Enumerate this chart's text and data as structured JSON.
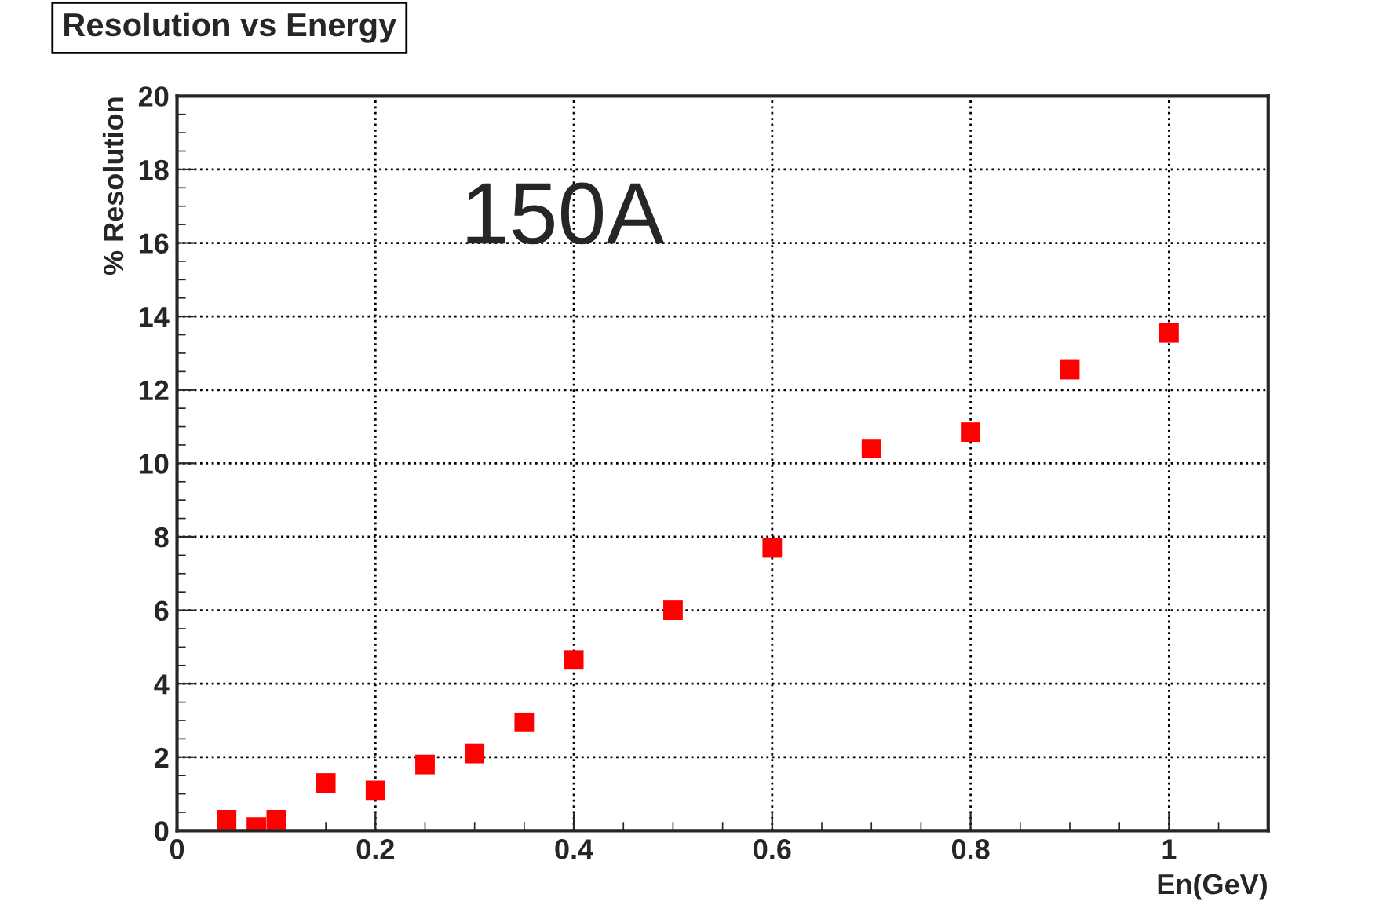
{
  "chart_data": {
    "type": "scatter",
    "title": "Resolution vs Energy",
    "xlabel": "En(GeV)",
    "ylabel": "% Resolution",
    "annotations": [
      "150A"
    ],
    "x": [
      0.05,
      0.08,
      0.1,
      0.15,
      0.2,
      0.25,
      0.3,
      0.35,
      0.4,
      0.5,
      0.6,
      0.7,
      0.8,
      0.9,
      1.0
    ],
    "series": [
      {
        "color": "#ff0000",
        "values": [
          0.3,
          0.1,
          0.3,
          1.3,
          1.1,
          1.8,
          2.1,
          2.95,
          4.65,
          6.0,
          7.7,
          10.4,
          10.85,
          12.55,
          13.55
        ]
      }
    ],
    "marker": "square",
    "xlim": [
      0,
      1.1
    ],
    "ylim": [
      0,
      20
    ],
    "xticks": [
      0,
      0.2,
      0.4,
      0.6,
      0.8,
      1
    ],
    "yticks": [
      0,
      2,
      4,
      6,
      8,
      10,
      12,
      14,
      16,
      18,
      20
    ],
    "grid": true,
    "legend": false
  }
}
